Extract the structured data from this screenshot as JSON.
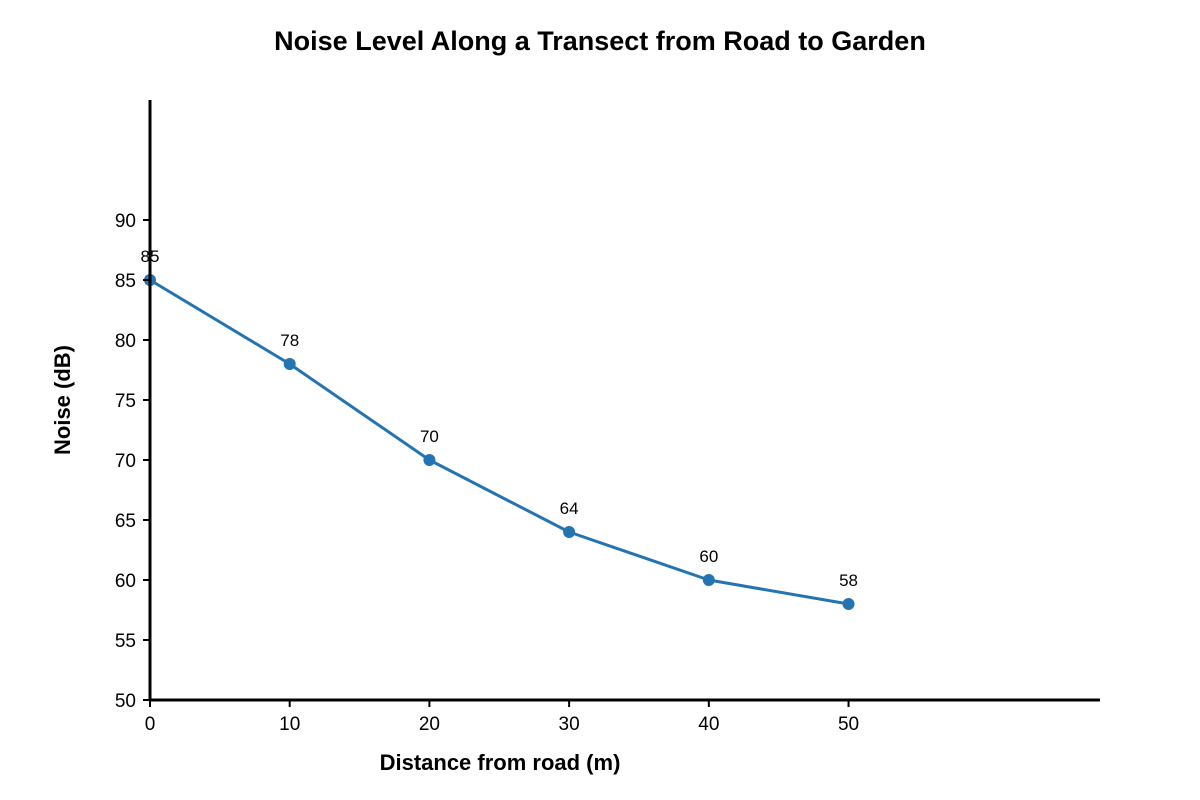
{
  "chart_data": {
    "type": "line",
    "title": "Noise Level Along a Transect from Road to Garden",
    "xlabel": "Distance from road (m)",
    "ylabel": "Noise (dB)",
    "x": [
      0,
      10,
      20,
      30,
      40,
      50
    ],
    "series": [
      {
        "values": [
          85,
          78,
          70,
          64,
          60,
          58
        ],
        "color": "#2474b2",
        "markers": true,
        "data_labels": [
          "85",
          "78",
          "70",
          "64",
          "60",
          "58"
        ]
      }
    ],
    "xlim": [
      0,
      68
    ],
    "ylim": [
      50,
      100
    ],
    "x_ticks": [
      0,
      10,
      20,
      30,
      40,
      50
    ],
    "x_tick_labels": [
      "0",
      "10",
      "20",
      "30",
      "40",
      "50"
    ],
    "y_ticks": [
      50,
      55,
      60,
      65,
      70,
      75,
      80,
      85,
      90
    ],
    "y_tick_labels": [
      "50",
      "55",
      "60",
      "65",
      "70",
      "75",
      "80",
      "85",
      "90"
    ],
    "grid": false,
    "legend": "none"
  }
}
